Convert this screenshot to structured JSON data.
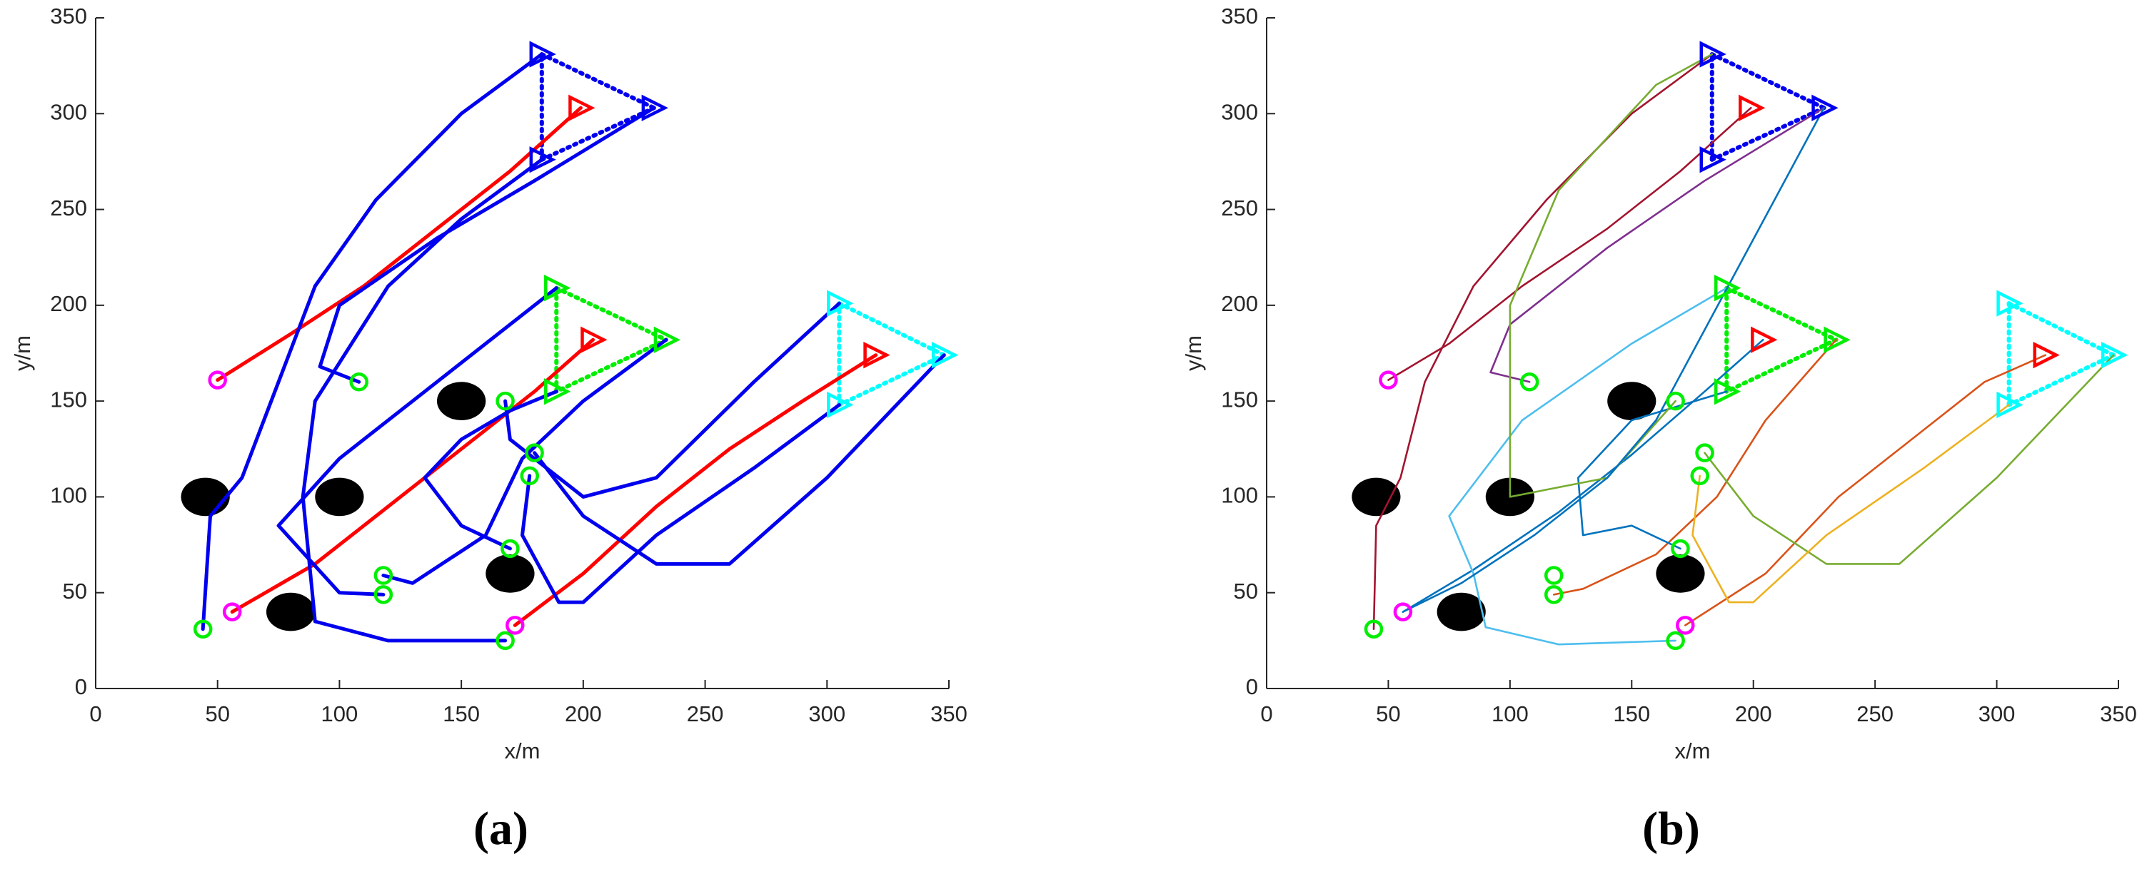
{
  "chart_data": [
    {
      "type": "line",
      "caption": "(a)",
      "xlabel": "x/m",
      "ylabel": "y/m",
      "xlim": [
        0,
        350
      ],
      "ylim": [
        0,
        350
      ],
      "xticks": [
        0,
        50,
        100,
        150,
        200,
        250,
        300,
        350
      ],
      "yticks": [
        0,
        50,
        100,
        150,
        200,
        250,
        300,
        350
      ],
      "series": [
        {
          "color": "#ff0000",
          "x": [
            50,
            80,
            110,
            140,
            170,
            199
          ],
          "values": [
            161,
            185,
            210,
            240,
            270,
            303
          ]
        },
        {
          "color": "#ff0000",
          "x": [
            56,
            90,
            120,
            150,
            180,
            204
          ],
          "values": [
            40,
            65,
            95,
            125,
            155,
            182
          ]
        },
        {
          "color": "#ff0000",
          "x": [
            172,
            200,
            230,
            260,
            290,
            320
          ],
          "values": [
            33,
            60,
            95,
            125,
            150,
            174
          ]
        },
        {
          "color": "#0000ee",
          "x": [
            44,
            47,
            60,
            75,
            90,
            115,
            150,
            183
          ],
          "values": [
            31,
            90,
            110,
            160,
            210,
            255,
            300,
            331
          ]
        },
        {
          "color": "#0000ee",
          "x": [
            108,
            92,
            100,
            140,
            180,
            229
          ],
          "values": [
            160,
            168,
            200,
            235,
            265,
            303
          ]
        },
        {
          "color": "#0000ee",
          "x": [
            168,
            120,
            90,
            85,
            90,
            120,
            150,
            183
          ],
          "values": [
            25,
            25,
            35,
            100,
            150,
            210,
            245,
            276
          ]
        },
        {
          "color": "#0000ee",
          "x": [
            118,
            100,
            75,
            100,
            140,
            189
          ],
          "values": [
            49,
            50,
            85,
            120,
            160,
            209
          ]
        },
        {
          "color": "#0000ee",
          "x": [
            118,
            130,
            160,
            175,
            200,
            234
          ],
          "values": [
            59,
            55,
            80,
            120,
            150,
            182
          ]
        },
        {
          "color": "#0000ee",
          "x": [
            170,
            150,
            135,
            150,
            170,
            189
          ],
          "values": [
            73,
            85,
            110,
            130,
            145,
            155
          ]
        },
        {
          "color": "#0000ee",
          "x": [
            180,
            200,
            230,
            260,
            300,
            348
          ],
          "values": [
            123,
            90,
            65,
            65,
            110,
            174
          ]
        },
        {
          "color": "#0000ee",
          "x": [
            178,
            175,
            190,
            200,
            230,
            270,
            305
          ],
          "values": [
            111,
            80,
            45,
            45,
            80,
            115,
            148
          ]
        },
        {
          "color": "#0000ee",
          "x": [
            168,
            170,
            200,
            230,
            270,
            305
          ],
          "values": [
            150,
            130,
            100,
            110,
            160,
            201
          ]
        }
      ],
      "obstacles": {
        "color": "#000000",
        "radius": 10,
        "x": [
          45,
          80,
          100,
          150,
          170
        ],
        "y": [
          100,
          40,
          100,
          150,
          60
        ]
      },
      "starts": [
        {
          "color": "#00ee00",
          "x": [
            44,
            108,
            168,
            118,
            118,
            170,
            180,
            178,
            168
          ],
          "y": [
            31,
            160,
            25,
            49,
            59,
            73,
            123,
            111,
            150
          ]
        },
        {
          "color": "#ff00ff",
          "x": [
            50,
            56,
            172
          ],
          "y": [
            161,
            40,
            33
          ]
        }
      ],
      "leaders": {
        "color": "#ff0000",
        "x": [
          199,
          204,
          320
        ],
        "y": [
          303,
          182,
          174
        ]
      },
      "formations": [
        {
          "color": "#0000ee",
          "x": [
            183,
            229,
            183
          ],
          "y": [
            331,
            303,
            276
          ]
        },
        {
          "color": "#00ee00",
          "x": [
            189,
            234,
            189
          ],
          "y": [
            209,
            182,
            155
          ]
        },
        {
          "color": "#00ffff",
          "x": [
            305,
            348,
            305
          ],
          "y": [
            201,
            174,
            148
          ]
        }
      ]
    },
    {
      "type": "line",
      "caption": "(b)",
      "xlabel": "x/m",
      "ylabel": "y/m",
      "xlim": [
        0,
        350
      ],
      "ylim": [
        0,
        350
      ],
      "xticks": [
        0,
        50,
        100,
        150,
        200,
        250,
        300,
        350
      ],
      "yticks": [
        0,
        50,
        100,
        150,
        200,
        250,
        300,
        350
      ],
      "series": [
        {
          "color": "#a2142f",
          "x": [
            50,
            75,
            105,
            140,
            170,
            199
          ],
          "values": [
            161,
            180,
            210,
            240,
            270,
            303
          ]
        },
        {
          "color": "#0072bd",
          "x": [
            56,
            85,
            120,
            150,
            180,
            204
          ],
          "values": [
            40,
            62,
            92,
            122,
            155,
            182
          ]
        },
        {
          "color": "#d95319",
          "x": [
            172,
            205,
            235,
            265,
            295,
            320
          ],
          "values": [
            33,
            60,
            100,
            130,
            160,
            174
          ]
        },
        {
          "color": "#a2142f",
          "x": [
            44,
            45,
            55,
            65,
            85,
            115,
            150,
            183
          ],
          "values": [
            31,
            85,
            110,
            160,
            210,
            255,
            300,
            331
          ]
        },
        {
          "color": "#7e2f8e",
          "x": [
            108,
            92,
            100,
            140,
            180,
            229
          ],
          "values": [
            160,
            165,
            190,
            230,
            265,
            303
          ]
        },
        {
          "color": "#4dbeee",
          "x": [
            168,
            120,
            90,
            85,
            75,
            105,
            150,
            189
          ],
          "values": [
            25,
            23,
            32,
            60,
            90,
            140,
            180,
            209
          ]
        },
        {
          "color": "#d95319",
          "x": [
            118,
            130,
            160,
            185,
            205,
            234
          ],
          "values": [
            49,
            52,
            70,
            100,
            140,
            182
          ]
        },
        {
          "color": "#0072bd",
          "x": [
            170,
            150,
            130,
            128,
            150,
            189
          ],
          "values": [
            73,
            85,
            80,
            110,
            140,
            155
          ]
        },
        {
          "color": "#77ac30",
          "x": [
            180,
            200,
            230,
            260,
            300,
            348
          ],
          "values": [
            123,
            90,
            65,
            65,
            110,
            174
          ]
        },
        {
          "color": "#edb120",
          "x": [
            178,
            175,
            190,
            200,
            230,
            270,
            305
          ],
          "values": [
            111,
            80,
            45,
            45,
            80,
            115,
            148
          ]
        },
        {
          "color": "#77ac30",
          "x": [
            168,
            140,
            100,
            100,
            120,
            160,
            183
          ],
          "values": [
            150,
            110,
            100,
            200,
            260,
            315,
            331
          ]
        },
        {
          "color": "#0072bd",
          "x": [
            56,
            80,
            110,
            140,
            160,
            229
          ],
          "values": [
            40,
            55,
            80,
            110,
            140,
            303
          ]
        }
      ],
      "obstacles": {
        "color": "#000000",
        "radius": 10,
        "x": [
          45,
          80,
          100,
          150,
          170
        ],
        "y": [
          100,
          40,
          100,
          150,
          60
        ]
      },
      "starts": [
        {
          "color": "#00ee00",
          "x": [
            44,
            108,
            168,
            118,
            118,
            170,
            180,
            178,
            168
          ],
          "y": [
            31,
            160,
            25,
            49,
            59,
            73,
            123,
            111,
            150
          ]
        },
        {
          "color": "#ff00ff",
          "x": [
            50,
            56,
            172
          ],
          "y": [
            161,
            40,
            33
          ]
        }
      ],
      "leaders": {
        "color": "#ff0000",
        "x": [
          199,
          204,
          320
        ],
        "y": [
          303,
          182,
          174
        ]
      },
      "formations": [
        {
          "color": "#0000ee",
          "x": [
            183,
            229,
            183
          ],
          "y": [
            331,
            303,
            276
          ]
        },
        {
          "color": "#00ee00",
          "x": [
            189,
            234,
            189
          ],
          "y": [
            209,
            182,
            155
          ]
        },
        {
          "color": "#00ffff",
          "x": [
            305,
            348,
            305
          ],
          "y": [
            201,
            174,
            148
          ]
        }
      ]
    }
  ]
}
